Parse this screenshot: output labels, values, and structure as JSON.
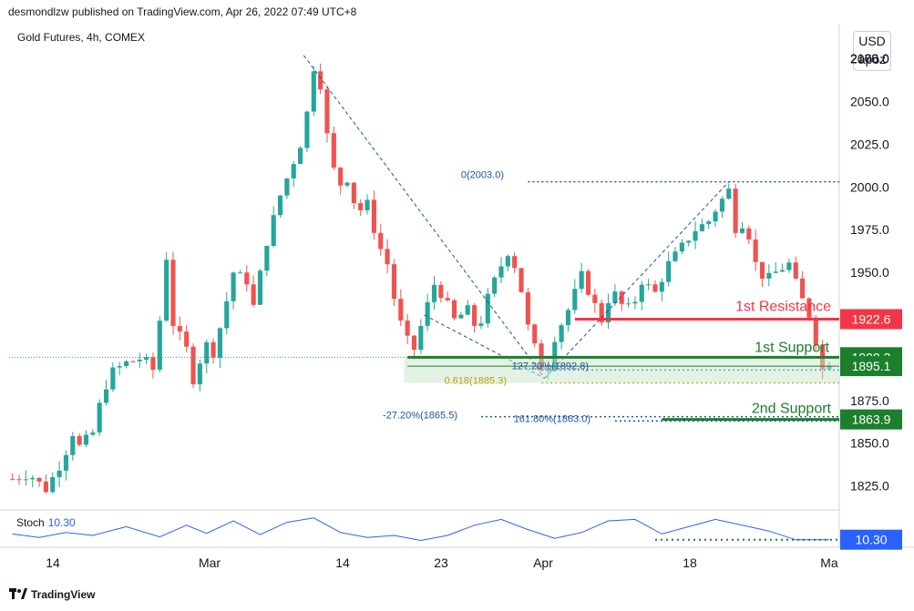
{
  "header": {
    "published": "desmondlzw published on TradingView.com, Apr 26, 2022 07:49 UTC+8",
    "symbol": "Gold Futures, 4h, COMEX",
    "currency": "USD",
    "unit": "apoz"
  },
  "indicator": {
    "label": "Stoch",
    "value": "10.30"
  },
  "footer": {
    "brand": "TradingView"
  },
  "colors": {
    "up": "#26a69a",
    "down": "#ef5350",
    "resistance": "#f23645",
    "support": "#1b7f2c",
    "fib": "#1e53a6",
    "fib_gold": "#b8a312",
    "stoch": "#2962ff"
  },
  "chart_data": {
    "type": "candlestick",
    "timeframe": "4h",
    "ylim": [
      1812,
      2095
    ],
    "y_ticks": [
      1825.0,
      1850.0,
      1875.0,
      1900.0,
      1925.0,
      1950.0,
      1975.0,
      2000.0,
      2025.0,
      2050.0,
      2075.0
    ],
    "y_tick_labels": [
      "1825.0",
      "1850.0",
      "1875.0",
      "1900.0",
      "1925.0",
      "1950.0",
      "1975.0",
      "2000.0",
      "2025.0",
      "2050.0",
      "2075.0"
    ],
    "x_tick_labels": [
      "14",
      "Mar",
      "14",
      "23",
      "Apr",
      "18",
      "Ma"
    ],
    "price_path": [
      [
        0,
        1829
      ],
      [
        2.5,
        1832
      ],
      [
        5,
        1823
      ],
      [
        7.5,
        1840
      ],
      [
        9,
        1856
      ],
      [
        10,
        1848
      ],
      [
        12,
        1856
      ],
      [
        13.5,
        1880
      ],
      [
        15,
        1892
      ],
      [
        17,
        1897
      ],
      [
        19.5,
        1900
      ],
      [
        21,
        1893
      ],
      [
        22,
        1922
      ],
      [
        23.3,
        1970
      ],
      [
        24,
        1920
      ],
      [
        26,
        1905
      ],
      [
        27.3,
        1882
      ],
      [
        28.5,
        1910
      ],
      [
        30,
        1903
      ],
      [
        31.5,
        1925
      ],
      [
        33,
        1950
      ],
      [
        35,
        1945
      ],
      [
        36,
        1930
      ],
      [
        38,
        1968
      ],
      [
        40,
        1995
      ],
      [
        41.5,
        2010
      ],
      [
        43.5,
        2030
      ],
      [
        45,
        2070
      ],
      [
        46,
        2060
      ],
      [
        47,
        2030
      ],
      [
        48.5,
        2000
      ],
      [
        50,
        2005
      ],
      [
        51.5,
        1985
      ],
      [
        53,
        1990
      ],
      [
        54.5,
        1968
      ],
      [
        56,
        1955
      ],
      [
        57.5,
        1925
      ],
      [
        59,
        1910
      ],
      [
        60,
        1905
      ],
      [
        61.5,
        1925
      ],
      [
        63,
        1943
      ],
      [
        64.5,
        1935
      ],
      [
        66,
        1922
      ],
      [
        68,
        1928
      ],
      [
        69.5,
        1915
      ],
      [
        71,
        1935
      ],
      [
        72.5,
        1950
      ],
      [
        74,
        1962
      ],
      [
        75.5,
        1950
      ],
      [
        77,
        1918
      ],
      [
        78.5,
        1900
      ],
      [
        79.5,
        1888
      ],
      [
        81,
        1912
      ],
      [
        83,
        1928
      ],
      [
        85,
        1948
      ],
      [
        86.5,
        1935
      ],
      [
        88,
        1922
      ],
      [
        89.5,
        1940
      ],
      [
        91,
        1931
      ],
      [
        92.5,
        1928
      ],
      [
        94,
        1945
      ],
      [
        96,
        1938
      ],
      [
        98,
        1955
      ],
      [
        100,
        1965
      ],
      [
        102,
        1975
      ],
      [
        104,
        1980
      ],
      [
        105.5,
        1990
      ],
      [
        107,
        1998
      ],
      [
        108,
        1976
      ],
      [
        109.5,
        1980
      ],
      [
        111,
        1955
      ],
      [
        112.5,
        1945
      ],
      [
        114,
        1950
      ],
      [
        116,
        1955
      ],
      [
        117.5,
        1938
      ],
      [
        119,
        1925
      ],
      [
        120,
        1910
      ],
      [
        121,
        1893
      ],
      [
        122,
        1898
      ]
    ],
    "stoch_path": [
      [
        0,
        30
      ],
      [
        4,
        18
      ],
      [
        8,
        35
      ],
      [
        12,
        25
      ],
      [
        17,
        55
      ],
      [
        22,
        20
      ],
      [
        26,
        60
      ],
      [
        29,
        32
      ],
      [
        33,
        75
      ],
      [
        37,
        28
      ],
      [
        41,
        70
      ],
      [
        45,
        85
      ],
      [
        49,
        35
      ],
      [
        53,
        18
      ],
      [
        57,
        25
      ],
      [
        61,
        8
      ],
      [
        65,
        25
      ],
      [
        69,
        60
      ],
      [
        73,
        80
      ],
      [
        77,
        45
      ],
      [
        81,
        15
      ],
      [
        85,
        35
      ],
      [
        89,
        75
      ],
      [
        93,
        80
      ],
      [
        97,
        30
      ],
      [
        101,
        55
      ],
      [
        105,
        80
      ],
      [
        109,
        60
      ],
      [
        113,
        40
      ],
      [
        117,
        10
      ],
      [
        122,
        10.3
      ]
    ],
    "levels": [
      {
        "name": "1st Resistance",
        "price": 1922.6,
        "label": "1922.6",
        "color": "#f23645",
        "x_start": 84
      },
      {
        "name": "1st Support",
        "price": 1900.3,
        "label": "1900.3",
        "color": "#1b7f2c",
        "x_start": 59
      },
      {
        "name": "",
        "price": 1895.1,
        "label": "1895.1",
        "color": "#1b7f2c",
        "x_start": 59
      },
      {
        "name": "2nd Support",
        "price": 1863.9,
        "label": "1863.9",
        "color": "#1b7f2c",
        "x_start": 97
      }
    ],
    "stoch_label": "10.30",
    "annotations": [
      {
        "text": "1st Resistance",
        "color": "#f23645"
      },
      {
        "text": "1st Support",
        "color": "#1b7f2c"
      },
      {
        "text": "2nd Support",
        "color": "#1b7f2c"
      },
      {
        "text": "0(2003.0)",
        "color": "#1e53a6",
        "price": 2003.0
      },
      {
        "text": "127.20%(1892.8)",
        "color": "#1e53a6",
        "price": 1892.8
      },
      {
        "text": "0.618(1885.3)",
        "color": "#b8a312",
        "price": 1885.3
      },
      {
        "text": "-27.20%(1865.5)",
        "color": "#1e53a6",
        "price": 1865.5
      },
      {
        "text": "161.80%(1863.0)",
        "color": "#1e53a6",
        "price": 1863.0
      }
    ]
  }
}
